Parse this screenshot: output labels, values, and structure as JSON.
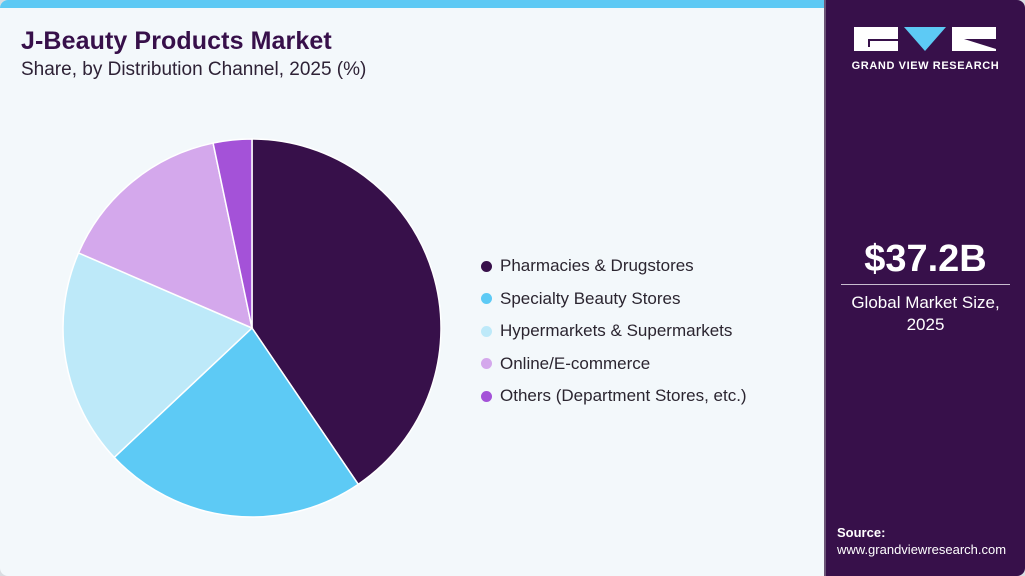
{
  "header": {
    "title": "J-Beauty Products Market",
    "subtitle": "Share, by Distribution Channel, 2025 (%)"
  },
  "legend": {
    "items": [
      {
        "label": "Pharmacies & Drugstores",
        "color": "#37104a"
      },
      {
        "label": "Specialty Beauty Stores",
        "color": "#5dcaf5"
      },
      {
        "label": "Hypermarkets & Supermarkets",
        "color": "#bde9f9"
      },
      {
        "label": "Online/E-commerce",
        "color": "#d4a8ec"
      },
      {
        "label": "Others (Department Stores, etc.)",
        "color": "#a452d8"
      }
    ]
  },
  "sidebar": {
    "brand": "GRAND VIEW RESEARCH",
    "market_value": "$37.2B",
    "market_label_line1": "Global Market Size,",
    "market_label_line2": "2025",
    "source_title": "Source:",
    "source_url": "www.grandviewresearch.com"
  },
  "colors": {
    "accent_bar": "#5dc9f4",
    "sidebar_bg": "#37104a",
    "background": "#f3f8fb"
  },
  "chart_data": {
    "type": "pie",
    "title": "J-Beauty Products Market",
    "subtitle": "Share, by Distribution Channel, 2025 (%)",
    "categories": [
      "Pharmacies & Drugstores",
      "Specialty Beauty Stores",
      "Hypermarkets & Supermarkets",
      "Online/E-commerce",
      "Others (Department Stores, etc.)"
    ],
    "values": [
      40.5,
      22.5,
      18.5,
      15.2,
      3.3
    ],
    "colors": [
      "#37104a",
      "#5dcaf5",
      "#bde9f9",
      "#d4a8ec",
      "#a452d8"
    ],
    "start_angle": "12 o'clock, clockwise",
    "legend_position": "right",
    "data_labels": false
  }
}
